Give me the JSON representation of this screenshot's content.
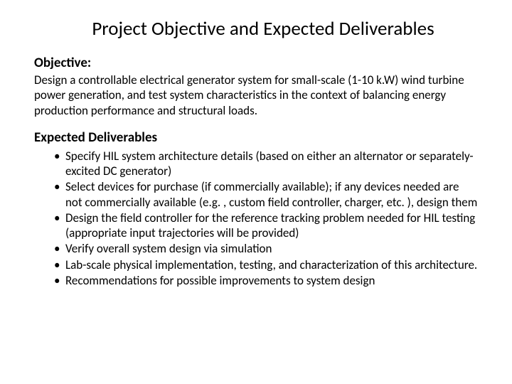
{
  "title": "Project Objective and Expected Deliverables",
  "objective": {
    "header": "Objective:",
    "text": "Design a controllable electrical generator system for small-scale (1-10 k.W) wind turbine power generation, and test system characteristics in the context of balancing energy production performance and structural loads."
  },
  "deliverables": {
    "header": "Expected Deliverables",
    "items": [
      "Specify HIL system architecture details (based on either an alternator or separately-excited DC generator)",
      "Select devices for purchase (if commercially available); if any devices needed are not commercially available (e.g. , custom field controller, charger, etc. ), design them",
      "Design the field controller for the reference tracking problem needed for HIL testing (appropriate input trajectories will be provided)",
      "Verify overall system design via simulation",
      "Lab-scale physical implementation, testing, and characterization of this architecture.",
      "Recommendations for possible improvements to system design"
    ]
  },
  "colors": {
    "background": "#ffffff",
    "text": "#000000"
  },
  "typography": {
    "title_fontsize": 27,
    "header_fontsize": 19,
    "body_fontsize": 17,
    "font_family": "Calibri"
  }
}
